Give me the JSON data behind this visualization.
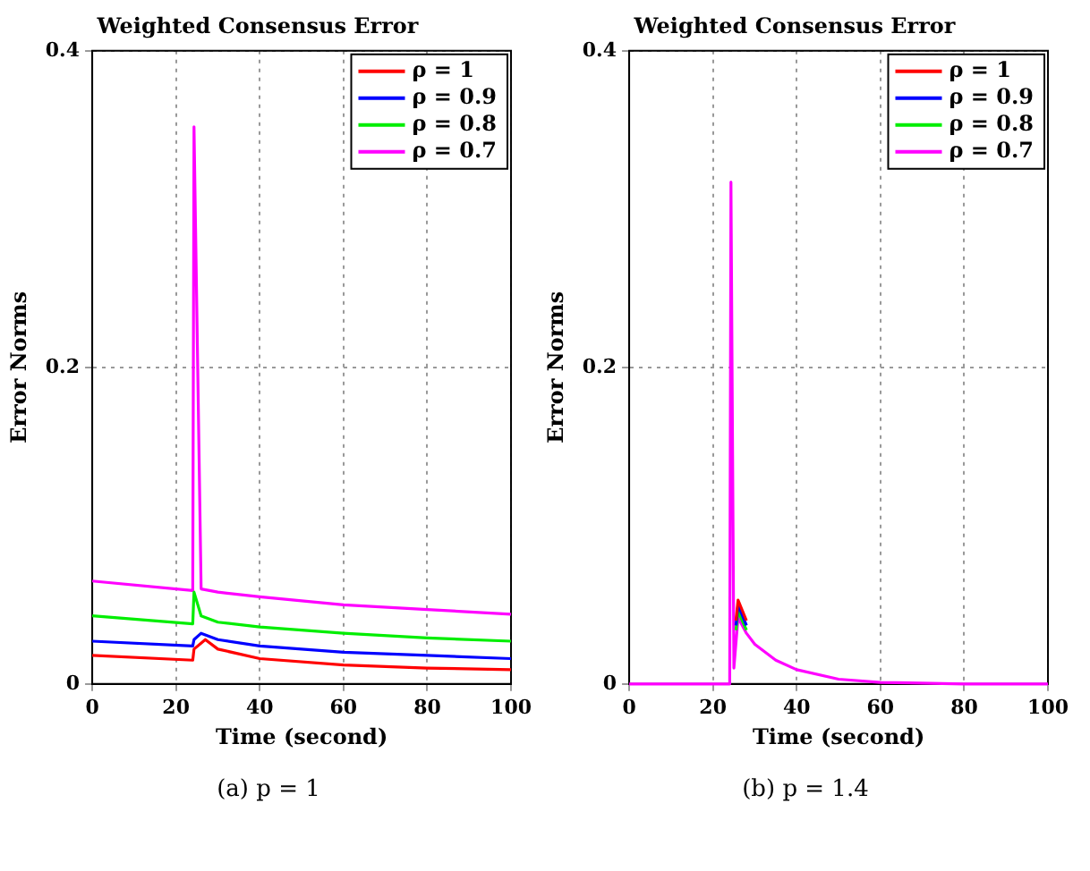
{
  "chart_data": [
    {
      "type": "line",
      "title": "Weighted Consensus Error",
      "xlabel": "Time (second)",
      "ylabel": "Error Norms",
      "xlim": [
        0,
        100
      ],
      "xticks": [
        0,
        20,
        40,
        60,
        80,
        100
      ],
      "ylim": [
        0,
        0.4
      ],
      "yticks": [
        0,
        0.2,
        0.4
      ],
      "grid": true,
      "legend": "top right",
      "annotations": [
        "(a) p = 1"
      ],
      "series": [
        {
          "name": "ρ = 1",
          "color": "#ff0000",
          "x": [
            0,
            24,
            24.3,
            27,
            30,
            40,
            60,
            80,
            100
          ],
          "values": [
            0.018,
            0.015,
            0.022,
            0.028,
            0.022,
            0.016,
            0.012,
            0.01,
            0.009
          ]
        },
        {
          "name": "ρ = 0.9",
          "color": "#0000ff",
          "x": [
            0,
            24,
            24.3,
            26,
            30,
            40,
            60,
            80,
            100
          ],
          "values": [
            0.027,
            0.024,
            0.028,
            0.032,
            0.028,
            0.024,
            0.02,
            0.018,
            0.016
          ]
        },
        {
          "name": "ρ = 0.8",
          "color": "#00ee00",
          "x": [
            0,
            24,
            24.3,
            26,
            30,
            40,
            60,
            80,
            100
          ],
          "values": [
            0.043,
            0.038,
            0.058,
            0.043,
            0.039,
            0.036,
            0.032,
            0.029,
            0.027
          ]
        },
        {
          "name": "ρ = 0.7",
          "color": "#ff00ff",
          "x": [
            0,
            24,
            24.3,
            26,
            30,
            40,
            60,
            80,
            100
          ],
          "values": [
            0.065,
            0.059,
            0.352,
            0.06,
            0.058,
            0.055,
            0.05,
            0.047,
            0.044
          ]
        }
      ]
    },
    {
      "type": "line",
      "title": "Weighted Consensus Error",
      "xlabel": "Time (second)",
      "ylabel": "Error Norms",
      "xlim": [
        0,
        100
      ],
      "xticks": [
        0,
        20,
        40,
        60,
        80,
        100
      ],
      "ylim": [
        0,
        0.4
      ],
      "yticks": [
        0,
        0.2,
        0.4
      ],
      "grid": true,
      "legend": "top right",
      "annotations": [
        "(b) p = 1.4"
      ],
      "series": [
        {
          "name": "ρ = 1",
          "color": "#ff0000",
          "x": [
            25.5,
            26,
            28
          ],
          "values": [
            0.04,
            0.053,
            0.04
          ]
        },
        {
          "name": "ρ = 0.9",
          "color": "#0000ff",
          "x": [
            25.5,
            26,
            28
          ],
          "values": [
            0.037,
            0.05,
            0.037
          ]
        },
        {
          "name": "ρ = 0.8",
          "color": "#00ee00",
          "x": [
            25.5,
            26,
            28
          ],
          "values": [
            0.034,
            0.046,
            0.034
          ]
        },
        {
          "name": "ρ = 0.7",
          "color": "#ff00ff",
          "x": [
            0,
            24,
            24.3,
            25,
            26,
            28,
            30,
            35,
            40,
            50,
            60,
            80,
            100
          ],
          "values": [
            0,
            0,
            0.317,
            0.01,
            0.042,
            0.032,
            0.025,
            0.015,
            0.009,
            0.003,
            0.001,
            0,
            0
          ]
        }
      ]
    }
  ]
}
